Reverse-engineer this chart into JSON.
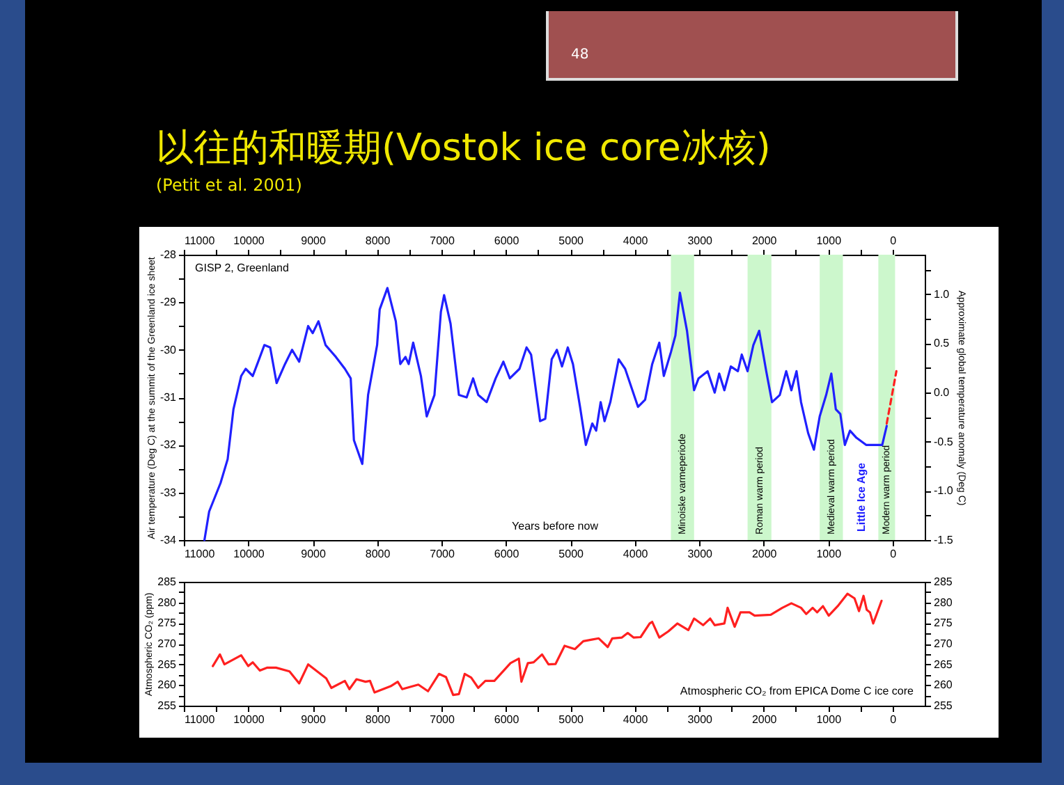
{
  "chart_data": [
    {
      "type": "line",
      "title": "以往的和暖期(Vostok ice core冰核)",
      "subtitle": "(Petit et al. 2001)",
      "xlabel": "Years before now",
      "ylabel": "Air temperature (Deg C) at the summit of the Greenland ice sheet",
      "y2label": "Approximate global temperature anomaly (Deg C)",
      "annotations": [
        "48",
        "GISP 2, Greenland",
        "Little Ice Age"
      ],
      "xlim": [
        11000,
        -500
      ],
      "xticks": [
        11000,
        {
          "value": 10500,
          "label": null
        },
        10000,
        {
          "value": 9500,
          "label": null
        },
        9000,
        {
          "value": 8500,
          "label": null
        },
        8000,
        {
          "value": 7500,
          "label": null
        },
        7000,
        {
          "value": 6500,
          "label": null
        },
        6000,
        {
          "value": 5500,
          "label": null
        },
        5000,
        {
          "value": 4500,
          "label": null
        },
        4000,
        {
          "value": 3500,
          "label": null
        },
        3000,
        {
          "value": 2500,
          "label": null
        },
        2000,
        {
          "value": 1500,
          "label": null
        },
        1000,
        {
          "value": 500,
          "label": null
        },
        0
      ],
      "x2lim": [
        11000,
        -500
      ],
      "x2ticks": [
        11000,
        {
          "value": 10500,
          "label": null
        },
        10000,
        {
          "value": 9500,
          "label": null
        },
        9000,
        {
          "value": 8500,
          "label": null
        },
        8000,
        {
          "value": 7500,
          "label": null
        },
        7000,
        {
          "value": 6500,
          "label": null
        },
        6000,
        {
          "value": 5500,
          "label": null
        },
        5000,
        {
          "value": 4500,
          "label": null
        },
        4000,
        {
          "value": 3500,
          "label": null
        },
        3000,
        {
          "value": 2500,
          "label": null
        },
        2000,
        {
          "value": 1500,
          "label": null
        },
        1000,
        {
          "value": 500,
          "label": null
        },
        0
      ],
      "ylim": [
        -34,
        -28
      ],
      "yticks": [
        -34,
        {
          "value": -33.5,
          "label": null
        },
        -33,
        {
          "value": -32.5,
          "label": null
        },
        -32,
        {
          "value": -31.5,
          "label": null
        },
        -31,
        {
          "value": -30.5,
          "label": null
        },
        -30,
        {
          "value": -29.5,
          "label": null
        },
        -29,
        {
          "value": -28.5,
          "label": null
        },
        -28
      ],
      "y2lim": [
        -1.5,
        1.4
      ],
      "y2ticks": [
        -1.5,
        {
          "value": -1.25,
          "label": null
        },
        {
          "value": -1,
          "label": "-1.0"
        },
        {
          "value": -0.75,
          "label": null
        },
        -0.5,
        {
          "value": -0.25,
          "label": null
        },
        {
          "value": 0,
          "label": "0.0"
        },
        {
          "value": 0.25,
          "label": null
        },
        0.5,
        {
          "value": 0.75,
          "label": null
        },
        {
          "value": 1,
          "label": "1.0"
        },
        {
          "value": 1.25,
          "label": null
        }
      ],
      "grid": false,
      "bands": [
        {
          "axis": "x",
          "from": 3440,
          "to": 3080,
          "label": "Minoiske varmeperiode",
          "color": "#ccf7cc"
        },
        {
          "axis": "x",
          "from": 2250,
          "to": 1880,
          "label": "Roman warm period",
          "color": "#ccf7cc"
        },
        {
          "axis": "x",
          "from": 1130,
          "to": 770,
          "label": "Medieval warm period",
          "color": "#ccf7cc"
        },
        {
          "axis": "x",
          "from": 220,
          "to": -40,
          "label": "Modern warm period",
          "color": "#ccf7cc"
        }
      ],
      "series": [
        {
          "color": "#2020ff",
          "x": [
            10680,
            10607,
            10430,
            10320,
            10230,
            10110,
            10040,
            9930,
            9860,
            9750,
            9660,
            9560,
            9430,
            9320,
            9210,
            9070,
            9000,
            8910,
            8800,
            8640,
            8500,
            8410,
            8360,
            8230,
            8140,
            8000,
            7960,
            7840,
            7710,
            7640,
            7560,
            7510,
            7440,
            7320,
            7230,
            7110,
            7010,
            6960,
            6860,
            6730,
            6610,
            6510,
            6430,
            6300,
            6160,
            6040,
            5940,
            5790,
            5680,
            5610,
            5470,
            5390,
            5290,
            5210,
            5130,
            5040,
            4960,
            4850,
            4760,
            4660,
            4600,
            4530,
            4470,
            4380,
            4250,
            4150,
            3950,
            3840,
            3730,
            3620,
            3550,
            3440,
            3370,
            3300,
            3190,
            3080,
            3010,
            2870,
            2760,
            2690,
            2610,
            2510,
            2400,
            2340,
            2250,
            2160,
            2070,
            1960,
            1870,
            1750,
            1650,
            1570,
            1490,
            1420,
            1310,
            1220,
            1130,
            1030,
            950,
            880,
            810,
            740,
            660,
            560,
            410,
            270,
            160,
            90
          ],
          "values": [
            -34.0,
            -33.4,
            -32.8,
            -32.3,
            -31.25,
            -30.55,
            -30.4,
            -30.55,
            -30.3,
            -29.9,
            -29.95,
            -30.7,
            -30.3,
            -30.0,
            -30.25,
            -29.5,
            -29.65,
            -29.4,
            -29.9,
            -30.15,
            -30.4,
            -30.6,
            -31.9,
            -32.4,
            -30.95,
            -29.9,
            -29.15,
            -28.7,
            -29.4,
            -30.3,
            -30.15,
            -30.3,
            -29.85,
            -30.55,
            -31.4,
            -30.95,
            -29.2,
            -28.85,
            -29.45,
            -30.95,
            -31.0,
            -30.6,
            -30.95,
            -31.1,
            -30.6,
            -30.25,
            -30.6,
            -30.4,
            -29.95,
            -30.1,
            -31.5,
            -31.45,
            -30.2,
            -30.0,
            -30.35,
            -29.95,
            -30.3,
            -31.2,
            -32.0,
            -31.55,
            -31.7,
            -31.1,
            -31.5,
            -31.1,
            -30.2,
            -30.4,
            -31.2,
            -31.05,
            -30.3,
            -29.85,
            -30.55,
            -30.05,
            -29.7,
            -28.8,
            -29.6,
            -30.85,
            -30.6,
            -30.45,
            -30.9,
            -30.5,
            -30.85,
            -30.35,
            -30.45,
            -30.1,
            -30.45,
            -29.9,
            -29.6,
            -30.45,
            -31.1,
            -30.95,
            -30.45,
            -30.85,
            -30.45,
            -31.1,
            -31.75,
            -32.1,
            -31.4,
            -30.95,
            -30.5,
            -31.25,
            -31.35,
            -32.0,
            -31.7,
            -31.85,
            -32.0,
            -32.0,
            -32.0,
            -31.6
          ]
        },
        {
          "color": "#ff2020",
          "line_style": "dashed",
          "x": [
            90,
            -60
          ],
          "values": [
            -31.55,
            -30.45
          ]
        }
      ]
    },
    {
      "type": "line",
      "ylabel": "Atmospheric CO₂ (ppm)",
      "annotations": [
        "Atmospheric CO₂ from EPICA Dome C ice core"
      ],
      "xlim": [
        11000,
        -500
      ],
      "xticks": [
        11000,
        {
          "value": 10500,
          "label": null
        },
        10000,
        {
          "value": 9500,
          "label": null
        },
        9000,
        {
          "value": 8500,
          "label": null
        },
        8000,
        {
          "value": 7500,
          "label": null
        },
        7000,
        {
          "value": 6500,
          "label": null
        },
        6000,
        {
          "value": 5500,
          "label": null
        },
        5000,
        {
          "value": 4500,
          "label": null
        },
        4000,
        {
          "value": 3500,
          "label": null
        },
        3000,
        {
          "value": 2500,
          "label": null
        },
        2000,
        {
          "value": 1500,
          "label": null
        },
        1000,
        {
          "value": 500,
          "label": null
        },
        0
      ],
      "ylim": [
        255,
        285
      ],
      "yticks": [
        255,
        {
          "value": 257.5,
          "label": null
        },
        260,
        {
          "value": 262.5,
          "label": null
        },
        265,
        {
          "value": 267.5,
          "label": null
        },
        270,
        {
          "value": 272.5,
          "label": null
        },
        275,
        {
          "value": 277.5,
          "label": null
        },
        280,
        {
          "value": 282.5,
          "label": null
        },
        285
      ],
      "y2lim": [
        255,
        285
      ],
      "y2ticks": [
        255,
        {
          "value": 257.5,
          "label": null
        },
        260,
        {
          "value": 262.5,
          "label": null
        },
        265,
        {
          "value": 267.5,
          "label": null
        },
        270,
        {
          "value": 272.5,
          "label": null
        },
        275,
        {
          "value": 277.5,
          "label": null
        },
        280,
        {
          "value": 282.5,
          "label": null
        },
        285
      ],
      "grid": false,
      "series": [
        {
          "color": "#ff2020",
          "x": [
            10550,
            10440,
            10370,
            10110,
            10000,
            9930,
            9820,
            9710,
            9570,
            9360,
            9210,
            9070,
            8930,
            8790,
            8710,
            8500,
            8430,
            8320,
            8180,
            8110,
            8040,
            7790,
            7680,
            7610,
            7360,
            7210,
            7040,
            6930,
            6820,
            6730,
            6640,
            6540,
            6430,
            6320,
            6180,
            5930,
            5800,
            5760,
            5660,
            5570,
            5440,
            5340,
            5230,
            5090,
            4930,
            4800,
            4670,
            4560,
            4420,
            4350,
            4200,
            4110,
            4020,
            3910,
            3770,
            3730,
            3620,
            3480,
            3340,
            3170,
            3080,
            2940,
            2830,
            2760,
            2610,
            2560,
            2450,
            2360,
            2220,
            2140,
            1890,
            1710,
            1570,
            1420,
            1340,
            1240,
            1170,
            1080,
            990,
            840,
            700,
            590,
            520,
            450,
            400,
            350,
            300,
            250,
            170
          ],
          "values": [
            264.6,
            267.4,
            265.0,
            267.2,
            264.6,
            265.5,
            263.5,
            264.2,
            264.2,
            263.3,
            260.4,
            265.0,
            263.3,
            261.6,
            259.3,
            261.0,
            259.0,
            261.4,
            260.8,
            261.0,
            258.2,
            259.7,
            260.8,
            259.0,
            260.1,
            258.5,
            262.7,
            261.9,
            257.6,
            257.8,
            262.7,
            261.8,
            259.3,
            261.0,
            261.0,
            265.3,
            266.4,
            260.8,
            265.3,
            265.5,
            267.4,
            265.0,
            265.1,
            269.5,
            268.7,
            270.6,
            271.0,
            271.3,
            269.2,
            271.3,
            271.5,
            272.6,
            271.5,
            271.6,
            274.9,
            275.3,
            271.5,
            273.0,
            274.9,
            273.3,
            276.1,
            274.5,
            276.1,
            274.5,
            274.9,
            278.7,
            274.1,
            277.6,
            277.6,
            276.8,
            277.0,
            278.7,
            279.8,
            278.7,
            277.2,
            278.7,
            277.6,
            279.1,
            276.8,
            279.3,
            282.1,
            281.0,
            277.9,
            281.6,
            278.2,
            277.6,
            274.9,
            277.0,
            280.4
          ]
        }
      ]
    }
  ]
}
